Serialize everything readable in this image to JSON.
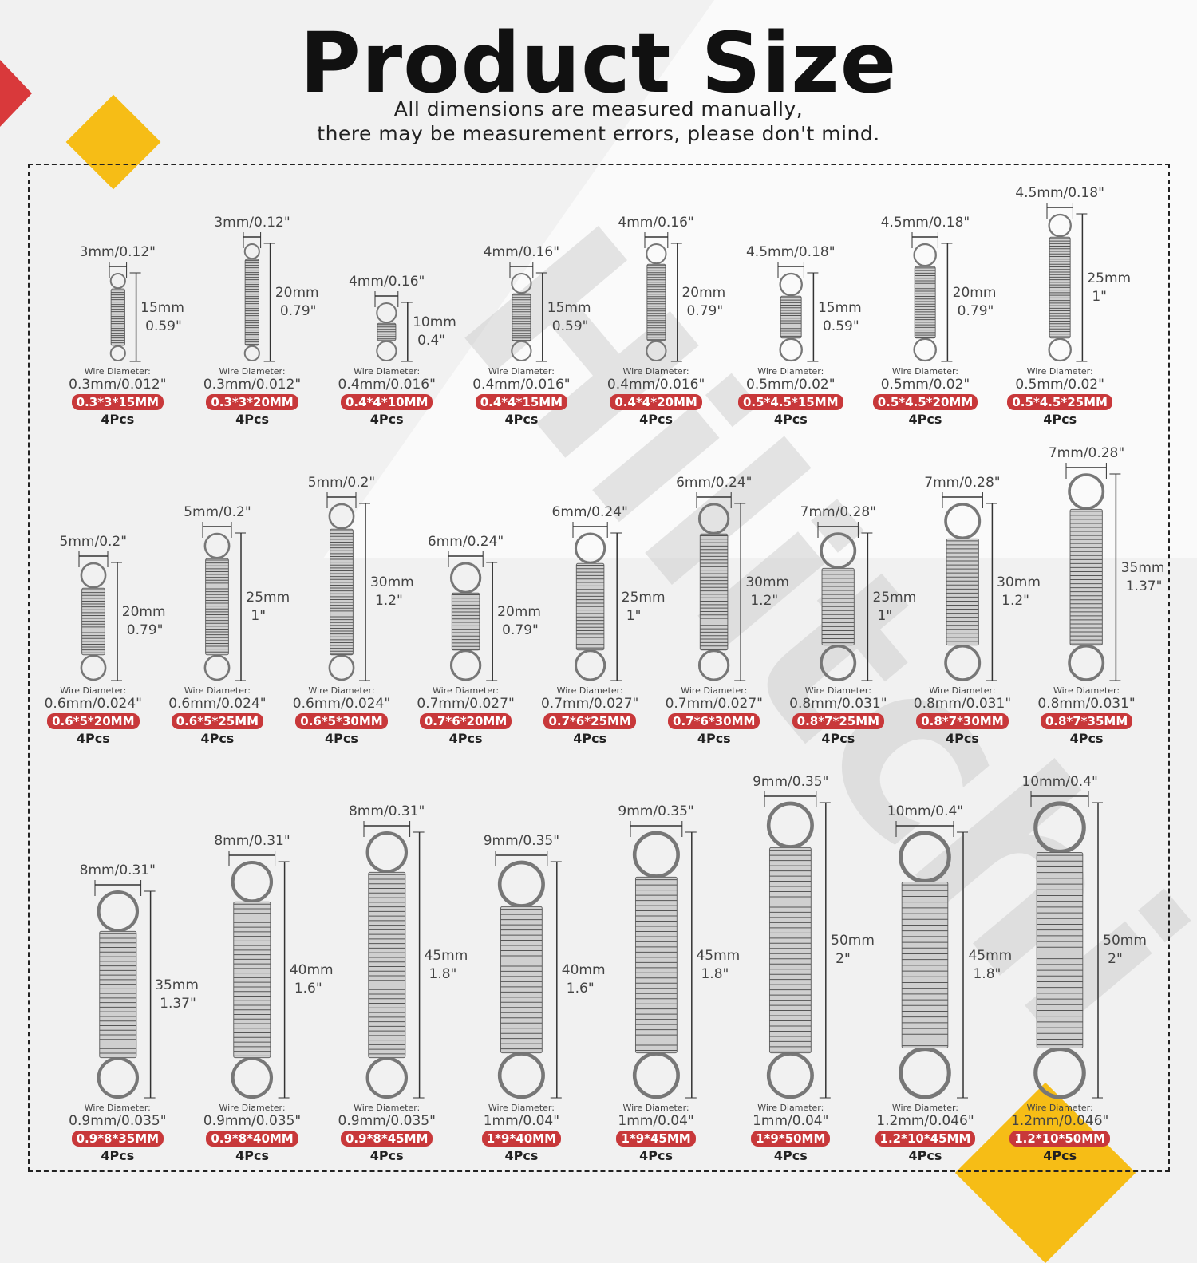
{
  "header": {
    "title": "Product Size",
    "subtitle_line1": "All dimensions are measured manually,",
    "subtitle_line2": "there may be measurement errors, please don't mind."
  },
  "watermark": "Hilitchi",
  "wire_label": "Wire Diameter:",
  "colors": {
    "badge": "#c8383a",
    "accent_red": "#d9393b",
    "accent_yellow": "#f6bd16"
  },
  "rows": [
    [
      {
        "dia": "3mm/0.12\"",
        "len_mm": "15mm",
        "len_in": "0.59\"",
        "wire": "0.3mm/0.012\"",
        "size": "0.3*3*15MM",
        "qty": "4Pcs"
      },
      {
        "dia": "3mm/0.12\"",
        "len_mm": "20mm",
        "len_in": "0.79\"",
        "wire": "0.3mm/0.012\"",
        "size": "0.3*3*20MM",
        "qty": "4Pcs"
      },
      {
        "dia": "4mm/0.16\"",
        "len_mm": "10mm",
        "len_in": "0.4\"",
        "wire": "0.4mm/0.016\"",
        "size": "0.4*4*10MM",
        "qty": "4Pcs"
      },
      {
        "dia": "4mm/0.16\"",
        "len_mm": "15mm",
        "len_in": "0.59\"",
        "wire": "0.4mm/0.016\"",
        "size": "0.4*4*15MM",
        "qty": "4Pcs"
      },
      {
        "dia": "4mm/0.16\"",
        "len_mm": "20mm",
        "len_in": "0.79\"",
        "wire": "0.4mm/0.016\"",
        "size": "0.4*4*20MM",
        "qty": "4Pcs"
      },
      {
        "dia": "4.5mm/0.18\"",
        "len_mm": "15mm",
        "len_in": "0.59\"",
        "wire": "0.5mm/0.02\"",
        "size": "0.5*4.5*15MM",
        "qty": "4Pcs"
      },
      {
        "dia": "4.5mm/0.18\"",
        "len_mm": "20mm",
        "len_in": "0.79\"",
        "wire": "0.5mm/0.02\"",
        "size": "0.5*4.5*20MM",
        "qty": "4Pcs"
      },
      {
        "dia": "4.5mm/0.18\"",
        "len_mm": "25mm",
        "len_in": "1\"",
        "wire": "0.5mm/0.02\"",
        "size": "0.5*4.5*25MM",
        "qty": "4Pcs"
      }
    ],
    [
      {
        "dia": "5mm/0.2\"",
        "len_mm": "20mm",
        "len_in": "0.79\"",
        "wire": "0.6mm/0.024\"",
        "size": "0.6*5*20MM",
        "qty": "4Pcs"
      },
      {
        "dia": "5mm/0.2\"",
        "len_mm": "25mm",
        "len_in": "1\"",
        "wire": "0.6mm/0.024\"",
        "size": "0.6*5*25MM",
        "qty": "4Pcs"
      },
      {
        "dia": "5mm/0.2\"",
        "len_mm": "30mm",
        "len_in": "1.2\"",
        "wire": "0.6mm/0.024\"",
        "size": "0.6*5*30MM",
        "qty": "4Pcs"
      },
      {
        "dia": "6mm/0.24\"",
        "len_mm": "20mm",
        "len_in": "0.79\"",
        "wire": "0.7mm/0.027\"",
        "size": "0.7*6*20MM",
        "qty": "4Pcs"
      },
      {
        "dia": "6mm/0.24\"",
        "len_mm": "25mm",
        "len_in": "1\"",
        "wire": "0.7mm/0.027\"",
        "size": "0.7*6*25MM",
        "qty": "4Pcs"
      },
      {
        "dia": "6mm/0.24\"",
        "len_mm": "30mm",
        "len_in": "1.2\"",
        "wire": "0.7mm/0.027\"",
        "size": "0.7*6*30MM",
        "qty": "4Pcs"
      },
      {
        "dia": "7mm/0.28\"",
        "len_mm": "25mm",
        "len_in": "1\"",
        "wire": "0.8mm/0.031\"",
        "size": "0.8*7*25MM",
        "qty": "4Pcs"
      },
      {
        "dia": "7mm/0.28\"",
        "len_mm": "30mm",
        "len_in": "1.2\"",
        "wire": "0.8mm/0.031\"",
        "size": "0.8*7*30MM",
        "qty": "4Pcs"
      },
      {
        "dia": "7mm/0.28\"",
        "len_mm": "35mm",
        "len_in": "1.37\"",
        "wire": "0.8mm/0.031\"",
        "size": "0.8*7*35MM",
        "qty": "4Pcs"
      }
    ],
    [
      {
        "dia": "8mm/0.31\"",
        "len_mm": "35mm",
        "len_in": "1.37\"",
        "wire": "0.9mm/0.035\"",
        "size": "0.9*8*35MM",
        "qty": "4Pcs"
      },
      {
        "dia": "8mm/0.31\"",
        "len_mm": "40mm",
        "len_in": "1.6\"",
        "wire": "0.9mm/0.035\"",
        "size": "0.9*8*40MM",
        "qty": "4Pcs"
      },
      {
        "dia": "8mm/0.31\"",
        "len_mm": "45mm",
        "len_in": "1.8\"",
        "wire": "0.9mm/0.035\"",
        "size": "0.9*8*45MM",
        "qty": "4Pcs"
      },
      {
        "dia": "9mm/0.35\"",
        "len_mm": "40mm",
        "len_in": "1.6\"",
        "wire": "1mm/0.04\"",
        "size": "1*9*40MM",
        "qty": "4Pcs"
      },
      {
        "dia": "9mm/0.35\"",
        "len_mm": "45mm",
        "len_in": "1.8\"",
        "wire": "1mm/0.04\"",
        "size": "1*9*45MM",
        "qty": "4Pcs"
      },
      {
        "dia": "9mm/0.35\"",
        "len_mm": "50mm",
        "len_in": "2\"",
        "wire": "1mm/0.04\"",
        "size": "1*9*50MM",
        "qty": "4Pcs"
      },
      {
        "dia": "10mm/0.4\"",
        "len_mm": "45mm",
        "len_in": "1.8\"",
        "wire": "1.2mm/0.046\"",
        "size": "1.2*10*45MM",
        "qty": "4Pcs"
      },
      {
        "dia": "10mm/0.4\"",
        "len_mm": "50mm",
        "len_in": "2\"",
        "wire": "1.2mm/0.046\"",
        "size": "1.2*10*50MM",
        "qty": "4Pcs"
      }
    ]
  ]
}
